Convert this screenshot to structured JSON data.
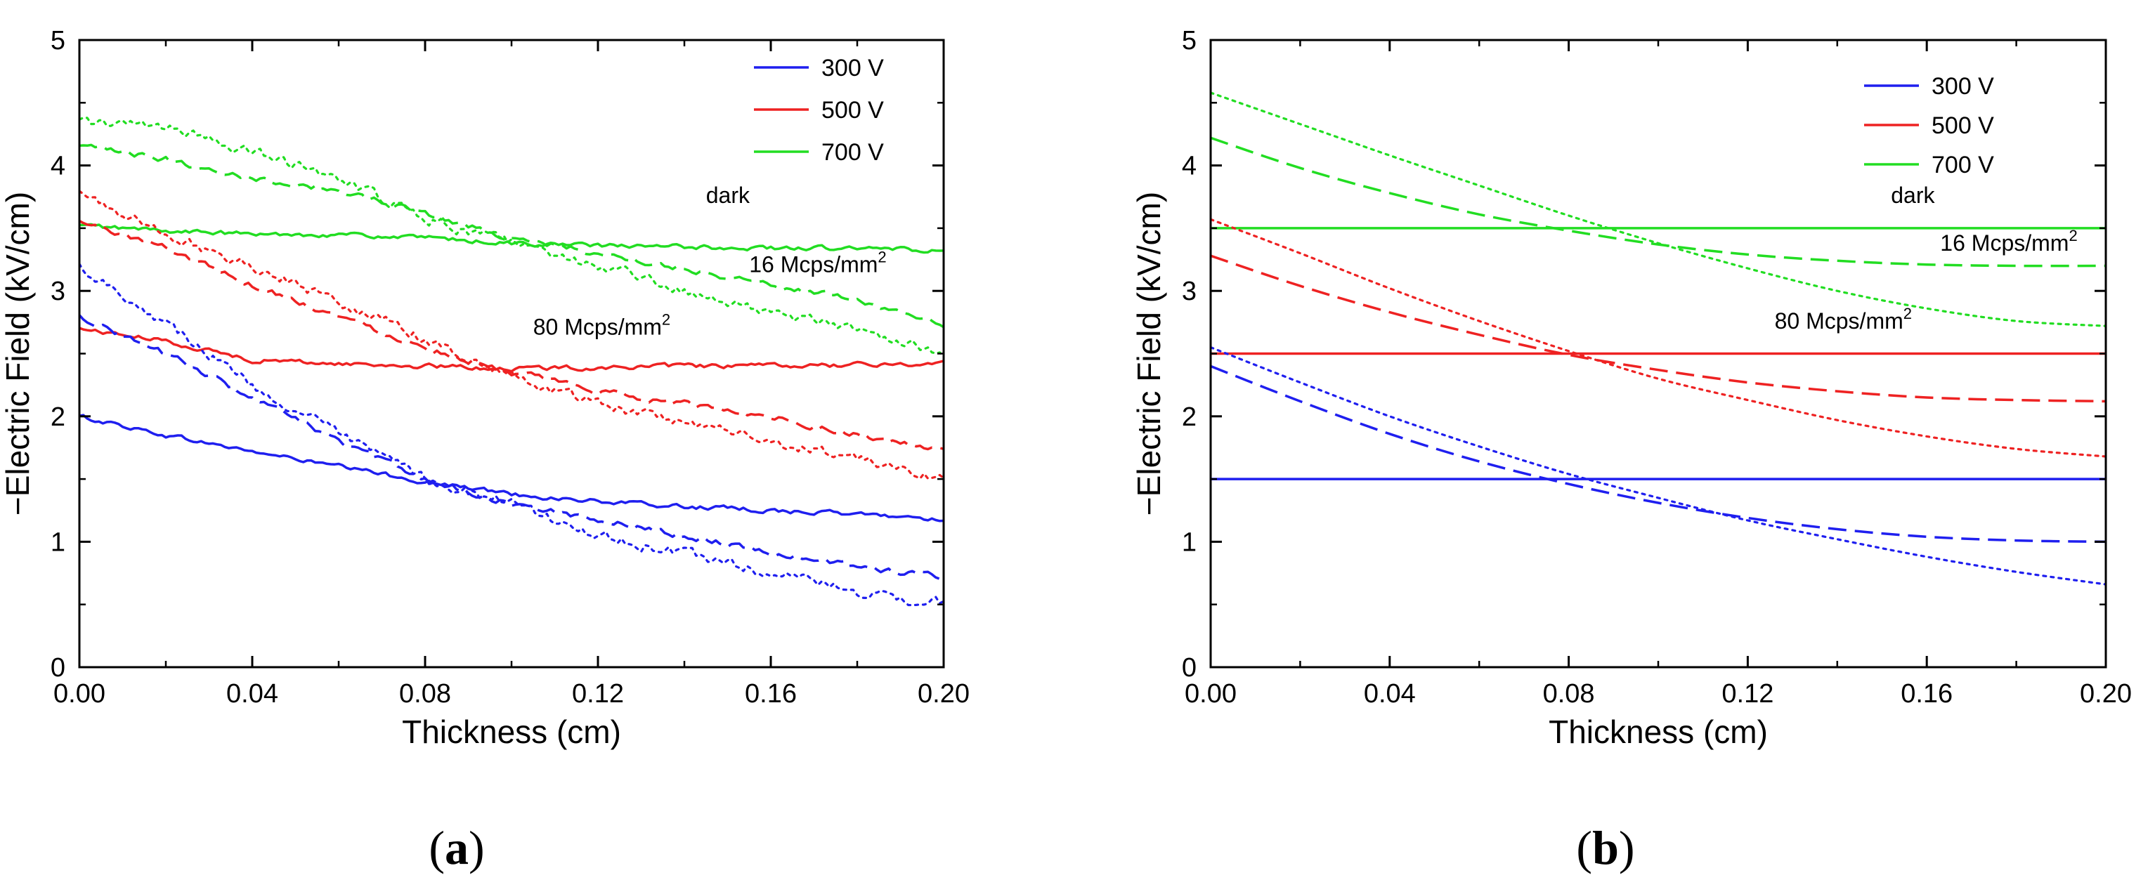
{
  "chart_data": [
    {
      "id": "a",
      "panel_label": "a",
      "type": "line",
      "title": "",
      "xlabel": "Thickness (cm)",
      "ylabel": "−Electric Field (kV/cm)",
      "xlim": [
        0,
        0.2
      ],
      "ylim": [
        0,
        5
      ],
      "xticks": [
        "0.00",
        "0.04",
        "0.08",
        "0.12",
        "0.16",
        "0.20"
      ],
      "yticks": [
        "0",
        "1",
        "2",
        "3",
        "4",
        "5"
      ],
      "legend_position": "top-right",
      "legend": [
        {
          "name": "300 V",
          "color": "#1f1fef"
        },
        {
          "name": "500 V",
          "color": "#ee2222"
        },
        {
          "name": "700 V",
          "color": "#22dd22"
        }
      ],
      "annotations": [
        {
          "text": "dark",
          "x": 0.145,
          "y": 3.7
        },
        {
          "text": "16 Mcps/mm",
          "sup": "2",
          "x": 0.155,
          "y": 3.15
        },
        {
          "text": "80 Mcps/mm",
          "sup": "2",
          "x": 0.105,
          "y": 2.65
        }
      ],
      "series": [
        {
          "name": "300 V dark",
          "voltage": "300 V",
          "condition": "dark",
          "color": "#1f1fef",
          "style": "solid",
          "noise": 0.015,
          "x": [
            0,
            0.02,
            0.04,
            0.06,
            0.08,
            0.1,
            0.12,
            0.14,
            0.16,
            0.18,
            0.2
          ],
          "y": [
            2.0,
            1.85,
            1.72,
            1.6,
            1.48,
            1.38,
            1.32,
            1.28,
            1.25,
            1.22,
            1.18
          ]
        },
        {
          "name": "500 V dark",
          "voltage": "500 V",
          "condition": "dark",
          "color": "#ee2222",
          "style": "solid",
          "noise": 0.015,
          "x": [
            0,
            0.02,
            0.04,
            0.06,
            0.08,
            0.1,
            0.12,
            0.14,
            0.16,
            0.18,
            0.2
          ],
          "y": [
            2.7,
            2.6,
            2.45,
            2.42,
            2.4,
            2.38,
            2.39,
            2.4,
            2.4,
            2.41,
            2.42
          ]
        },
        {
          "name": "700 V dark",
          "voltage": "700 V",
          "condition": "dark",
          "color": "#22dd22",
          "style": "solid",
          "noise": 0.015,
          "x": [
            0,
            0.02,
            0.04,
            0.06,
            0.08,
            0.1,
            0.12,
            0.14,
            0.16,
            0.18,
            0.2
          ],
          "y": [
            3.52,
            3.48,
            3.45,
            3.45,
            3.42,
            3.38,
            3.36,
            3.35,
            3.34,
            3.34,
            3.32
          ]
        },
        {
          "name": "300 V 16 Mcps/mm2",
          "voltage": "300 V",
          "condition": "16 Mcps/mm2",
          "color": "#1f1fef",
          "style": "dashed",
          "noise": 0.02,
          "x": [
            0,
            0.02,
            0.04,
            0.06,
            0.08,
            0.1,
            0.12,
            0.14,
            0.16,
            0.18,
            0.2
          ],
          "y": [
            2.8,
            2.5,
            2.15,
            1.8,
            1.5,
            1.3,
            1.18,
            1.05,
            0.92,
            0.8,
            0.72
          ]
        },
        {
          "name": "500 V 16 Mcps/mm2",
          "voltage": "500 V",
          "condition": "16 Mcps/mm2",
          "color": "#ee2222",
          "style": "dashed",
          "noise": 0.02,
          "x": [
            0,
            0.02,
            0.04,
            0.06,
            0.08,
            0.1,
            0.12,
            0.14,
            0.16,
            0.18,
            0.2
          ],
          "y": [
            3.55,
            3.35,
            3.05,
            2.8,
            2.55,
            2.35,
            2.2,
            2.1,
            2.0,
            1.85,
            1.72
          ]
        },
        {
          "name": "700 V 16 Mcps/mm2",
          "voltage": "700 V",
          "condition": "16 Mcps/mm2",
          "color": "#22dd22",
          "style": "dashed",
          "noise": 0.02,
          "x": [
            0,
            0.02,
            0.04,
            0.06,
            0.08,
            0.1,
            0.12,
            0.14,
            0.16,
            0.18,
            0.2
          ],
          "y": [
            4.15,
            4.05,
            3.9,
            3.8,
            3.62,
            3.42,
            3.3,
            3.18,
            3.05,
            2.93,
            2.72
          ]
        },
        {
          "name": "300 V 80 Mcps/mm2",
          "voltage": "300 V",
          "condition": "80 Mcps/mm2",
          "color": "#1f1fef",
          "style": "dotted",
          "noise": 0.035,
          "x": [
            0,
            0.02,
            0.04,
            0.06,
            0.08,
            0.1,
            0.12,
            0.14,
            0.16,
            0.18,
            0.2
          ],
          "y": [
            3.2,
            2.75,
            2.25,
            1.85,
            1.5,
            1.3,
            1.05,
            0.9,
            0.75,
            0.6,
            0.5
          ]
        },
        {
          "name": "500 V 80 Mcps/mm2",
          "voltage": "500 V",
          "condition": "80 Mcps/mm2",
          "color": "#ee2222",
          "style": "dotted",
          "noise": 0.035,
          "x": [
            0,
            0.02,
            0.04,
            0.06,
            0.08,
            0.1,
            0.12,
            0.14,
            0.16,
            0.18,
            0.2
          ],
          "y": [
            3.78,
            3.45,
            3.2,
            2.92,
            2.62,
            2.32,
            2.1,
            1.95,
            1.8,
            1.65,
            1.5
          ]
        },
        {
          "name": "700 V 80 Mcps/mm2",
          "voltage": "700 V",
          "condition": "80 Mcps/mm2",
          "color": "#22dd22",
          "style": "dotted",
          "noise": 0.035,
          "x": [
            0,
            0.02,
            0.04,
            0.06,
            0.08,
            0.1,
            0.12,
            0.14,
            0.16,
            0.18,
            0.2
          ],
          "y": [
            4.35,
            4.3,
            4.1,
            3.9,
            3.58,
            3.38,
            3.2,
            3.0,
            2.82,
            2.68,
            2.52
          ]
        }
      ]
    },
    {
      "id": "b",
      "panel_label": "b",
      "type": "line",
      "title": "",
      "xlabel": "Thickness (cm)",
      "ylabel": "−Electric Field (kV/cm)",
      "xlim": [
        0,
        0.2
      ],
      "ylim": [
        0,
        5
      ],
      "xticks": [
        "0.00",
        "0.04",
        "0.08",
        "0.12",
        "0.16",
        "0.20"
      ],
      "yticks": [
        "0",
        "1",
        "2",
        "3",
        "4",
        "5"
      ],
      "legend_position": "top-right",
      "legend": [
        {
          "name": "300 V",
          "color": "#1f1fef"
        },
        {
          "name": "500 V",
          "color": "#ee2222"
        },
        {
          "name": "700 V",
          "color": "#22dd22"
        }
      ],
      "annotations": [
        {
          "text": "dark",
          "x": 0.152,
          "y": 3.7
        },
        {
          "text": "16 Mcps/mm",
          "sup": "2",
          "x": 0.163,
          "y": 3.32
        },
        {
          "text": "80 Mcps/mm",
          "sup": "2",
          "x": 0.126,
          "y": 2.7
        }
      ],
      "series": [
        {
          "name": "300 V dark",
          "voltage": "300 V",
          "condition": "dark",
          "color": "#1f1fef",
          "style": "solid",
          "noise": 0,
          "x": [
            0,
            0.2
          ],
          "y": [
            1.5,
            1.5
          ]
        },
        {
          "name": "500 V dark",
          "voltage": "500 V",
          "condition": "dark",
          "color": "#ee2222",
          "style": "solid",
          "noise": 0,
          "x": [
            0,
            0.2
          ],
          "y": [
            2.5,
            2.5
          ]
        },
        {
          "name": "700 V dark",
          "voltage": "700 V",
          "condition": "dark",
          "color": "#22dd22",
          "style": "solid",
          "noise": 0,
          "x": [
            0,
            0.2
          ],
          "y": [
            3.5,
            3.5
          ]
        },
        {
          "name": "300 V 16 Mcps/mm2",
          "voltage": "300 V",
          "condition": "16 Mcps/mm2",
          "color": "#1f1fef",
          "style": "dashed",
          "noise": 0,
          "x": [
            0,
            0.02,
            0.04,
            0.06,
            0.08,
            0.1,
            0.12,
            0.14,
            0.16,
            0.18,
            0.2
          ],
          "y": [
            2.4,
            2.12,
            1.86,
            1.64,
            1.46,
            1.31,
            1.19,
            1.1,
            1.04,
            1.01,
            1.0
          ]
        },
        {
          "name": "500 V 16 Mcps/mm2",
          "voltage": "500 V",
          "condition": "16 Mcps/mm2",
          "color": "#ee2222",
          "style": "dashed",
          "noise": 0,
          "x": [
            0,
            0.02,
            0.04,
            0.06,
            0.08,
            0.1,
            0.12,
            0.14,
            0.16,
            0.18,
            0.2
          ],
          "y": [
            3.28,
            3.04,
            2.83,
            2.65,
            2.49,
            2.37,
            2.27,
            2.2,
            2.15,
            2.13,
            2.12
          ]
        },
        {
          "name": "700 V 16 Mcps/mm2",
          "voltage": "700 V",
          "condition": "16 Mcps/mm2",
          "color": "#22dd22",
          "style": "dashed",
          "noise": 0,
          "x": [
            0,
            0.02,
            0.04,
            0.06,
            0.08,
            0.1,
            0.12,
            0.14,
            0.16,
            0.18,
            0.2
          ],
          "y": [
            4.22,
            3.98,
            3.78,
            3.61,
            3.48,
            3.37,
            3.29,
            3.24,
            3.21,
            3.2,
            3.2
          ]
        },
        {
          "name": "300 V 80 Mcps/mm2",
          "voltage": "300 V",
          "condition": "80 Mcps/mm2",
          "color": "#1f1fef",
          "style": "dotted",
          "noise": 0,
          "x": [
            0,
            0.02,
            0.04,
            0.06,
            0.08,
            0.1,
            0.12,
            0.14,
            0.16,
            0.18,
            0.2
          ],
          "y": [
            2.55,
            2.27,
            2.0,
            1.76,
            1.54,
            1.35,
            1.17,
            1.02,
            0.88,
            0.76,
            0.66
          ]
        },
        {
          "name": "500 V 80 Mcps/mm2",
          "voltage": "500 V",
          "condition": "80 Mcps/mm2",
          "color": "#ee2222",
          "style": "dotted",
          "noise": 0,
          "x": [
            0,
            0.02,
            0.04,
            0.06,
            0.08,
            0.1,
            0.12,
            0.14,
            0.16,
            0.18,
            0.2
          ],
          "y": [
            3.57,
            3.3,
            3.02,
            2.76,
            2.52,
            2.3,
            2.13,
            1.97,
            1.84,
            1.74,
            1.68
          ]
        },
        {
          "name": "700 V 80 Mcps/mm2",
          "voltage": "700 V",
          "condition": "80 Mcps/mm2",
          "color": "#22dd22",
          "style": "dotted",
          "noise": 0,
          "x": [
            0,
            0.02,
            0.04,
            0.06,
            0.08,
            0.1,
            0.12,
            0.14,
            0.16,
            0.18,
            0.2
          ],
          "y": [
            4.58,
            4.33,
            4.08,
            3.84,
            3.6,
            3.38,
            3.18,
            3.0,
            2.86,
            2.76,
            2.72
          ]
        }
      ]
    }
  ]
}
